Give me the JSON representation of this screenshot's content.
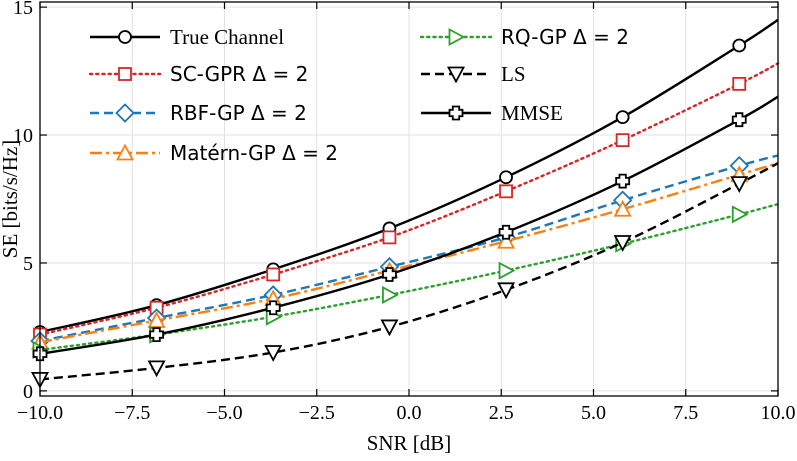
{
  "chart_data": {
    "type": "line",
    "title": "",
    "xlabel": "SNR [dB]",
    "ylabel": "SE [bits/s/Hz]",
    "xlim": [
      -10,
      10
    ],
    "ylim": [
      -0.2,
      15.2
    ],
    "xticks": [
      -10,
      -7.5,
      -5,
      -2.5,
      0,
      2.5,
      5,
      7.5,
      10
    ],
    "xtick_labels": [
      "−10.0",
      "−7.5",
      "−5.0",
      "−2.5",
      "0.0",
      "2.5",
      "5.0",
      "7.5",
      "10.0"
    ],
    "yticks": [
      0,
      5,
      10,
      15
    ],
    "ytick_labels": [
      "0",
      "5",
      "10",
      "15"
    ],
    "grid": true,
    "legend_position": "top",
    "series": [
      {
        "name": "True Channel",
        "color": "#000000",
        "dash": "solid",
        "marker": "circle",
        "x": [
          -10,
          -6.84,
          -3.68,
          -0.53,
          2.63,
          5.79,
          8.95
        ],
        "marker_y": [
          2.3,
          3.35,
          4.75,
          6.35,
          8.35,
          10.7,
          13.5
        ],
        "curve": [
          [
            -10,
            2.3
          ],
          [
            -6.84,
            3.35
          ],
          [
            -3.68,
            4.75
          ],
          [
            -0.53,
            6.35
          ],
          [
            2.63,
            8.35
          ],
          [
            5.79,
            10.7
          ],
          [
            8.95,
            13.5
          ],
          [
            10,
            14.5
          ]
        ]
      },
      {
        "name": "SC-GPR Δ = 2",
        "color": "#d62728",
        "dash": "dotted",
        "marker": "square",
        "x": [
          -10,
          -6.84,
          -3.68,
          -0.53,
          2.63,
          5.79,
          8.95
        ],
        "marker_y": [
          2.2,
          3.25,
          4.55,
          6.0,
          7.8,
          9.8,
          12.0
        ],
        "curve": [
          [
            -10,
            2.2
          ],
          [
            -6.84,
            3.25
          ],
          [
            -3.68,
            4.55
          ],
          [
            -0.53,
            6.0
          ],
          [
            2.63,
            7.8
          ],
          [
            5.79,
            9.8
          ],
          [
            8.95,
            12.0
          ],
          [
            10,
            12.8
          ]
        ]
      },
      {
        "name": "RBF-GP Δ = 2",
        "color": "#1f77b4",
        "dash": "dashed",
        "marker": "diamond",
        "x": [
          -10,
          -6.84,
          -3.68,
          -0.53,
          2.63,
          5.79,
          8.95
        ],
        "marker_y": [
          1.95,
          2.85,
          3.75,
          4.85,
          6.0,
          7.45,
          8.8
        ],
        "curve": [
          [
            -10,
            1.95
          ],
          [
            -6.84,
            2.85
          ],
          [
            -3.68,
            3.75
          ],
          [
            -0.53,
            4.85
          ],
          [
            2.63,
            6.0
          ],
          [
            5.79,
            7.45
          ],
          [
            8.95,
            8.8
          ],
          [
            10,
            9.2
          ]
        ]
      },
      {
        "name": "Matérn-GP Δ = 2",
        "color": "#ff7f0e",
        "dash": "dashdot",
        "marker": "triangle-up",
        "x": [
          -10,
          -6.84,
          -3.68,
          -0.53,
          2.63,
          5.79,
          8.95
        ],
        "marker_y": [
          1.9,
          2.75,
          3.6,
          4.7,
          5.85,
          7.1,
          8.45
        ],
        "curve": [
          [
            -10,
            1.9
          ],
          [
            -6.84,
            2.75
          ],
          [
            -3.68,
            3.6
          ],
          [
            -0.53,
            4.7
          ],
          [
            2.63,
            5.85
          ],
          [
            5.79,
            7.1
          ],
          [
            8.95,
            8.45
          ],
          [
            10,
            8.9
          ]
        ]
      },
      {
        "name": "RQ-GP Δ = 2",
        "color": "#2ca02c",
        "dash": "dotted",
        "marker": "triangle-right",
        "x": [
          -10,
          -6.84,
          -3.68,
          -0.53,
          2.63,
          5.79,
          8.95
        ],
        "marker_y": [
          1.6,
          2.2,
          2.9,
          3.75,
          4.7,
          5.75,
          6.9
        ],
        "curve": [
          [
            -10,
            1.6
          ],
          [
            -6.84,
            2.2
          ],
          [
            -3.68,
            2.9
          ],
          [
            -0.53,
            3.75
          ],
          [
            2.63,
            4.7
          ],
          [
            5.79,
            5.75
          ],
          [
            8.95,
            6.9
          ],
          [
            10,
            7.3
          ]
        ]
      },
      {
        "name": "LS",
        "color": "#000000",
        "dash": "dashed",
        "marker": "triangle-down",
        "x": [
          -10,
          -6.84,
          -3.68,
          -0.53,
          2.63,
          5.79,
          8.95
        ],
        "marker_y": [
          0.45,
          0.9,
          1.5,
          2.5,
          3.95,
          5.8,
          8.1
        ],
        "curve": [
          [
            -10,
            0.45
          ],
          [
            -6.84,
            0.9
          ],
          [
            -3.68,
            1.5
          ],
          [
            -0.53,
            2.5
          ],
          [
            2.63,
            3.95
          ],
          [
            5.79,
            5.8
          ],
          [
            8.95,
            8.1
          ],
          [
            10,
            8.9
          ]
        ]
      },
      {
        "name": "MMSE",
        "color": "#000000",
        "dash": "solid",
        "marker": "plus",
        "x": [
          -10,
          -6.84,
          -3.68,
          -0.53,
          2.63,
          5.79,
          8.95
        ],
        "marker_y": [
          1.45,
          2.2,
          3.25,
          4.55,
          6.2,
          8.2,
          10.6
        ],
        "curve": [
          [
            -10,
            1.45
          ],
          [
            -6.84,
            2.2
          ],
          [
            -3.68,
            3.25
          ],
          [
            -0.53,
            4.55
          ],
          [
            2.63,
            6.2
          ],
          [
            5.79,
            8.2
          ],
          [
            8.95,
            10.6
          ],
          [
            10,
            11.5
          ]
        ]
      }
    ]
  }
}
